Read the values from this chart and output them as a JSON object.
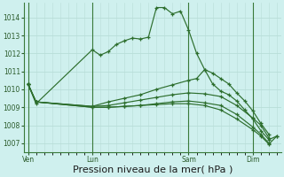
{
  "background_color": "#cff0ee",
  "grid_color": "#b8ddd8",
  "line_color": "#2d6e2d",
  "xlabel": "Pression niveau de la mer( hPa )",
  "xlabel_fontsize": 8,
  "ylim": [
    1006.5,
    1014.8
  ],
  "yticks": [
    1007,
    1008,
    1009,
    1010,
    1011,
    1012,
    1013,
    1014
  ],
  "xtick_labels": [
    "Ven",
    "Lun",
    "Sam",
    "Dim"
  ],
  "xtick_positions": [
    0,
    8,
    20,
    28
  ],
  "vlines_color": "#3a7a3a",
  "series": [
    {
      "x": [
        0,
        1,
        8,
        9,
        10,
        11,
        12,
        13,
        14,
        15,
        16,
        17,
        18,
        19,
        20,
        21,
        22,
        23,
        24,
        25,
        26,
        27,
        28,
        29,
        30,
        31
      ],
      "y": [
        1010.3,
        1009.2,
        1012.2,
        1011.9,
        1012.1,
        1012.5,
        1012.7,
        1012.85,
        1012.8,
        1012.9,
        1014.55,
        1014.55,
        1014.2,
        1014.35,
        1013.3,
        1012.0,
        1011.1,
        1010.3,
        1009.9,
        1009.7,
        1009.35,
        1008.85,
        1008.35,
        1007.7,
        1007.2,
        1007.4
      ]
    },
    {
      "x": [
        0,
        1,
        8,
        10,
        12,
        14,
        16,
        18,
        20,
        21,
        22,
        23,
        24,
        25,
        26,
        27,
        28,
        29,
        30
      ],
      "y": [
        1010.3,
        1009.3,
        1009.05,
        1009.3,
        1009.5,
        1009.7,
        1010.0,
        1010.25,
        1010.5,
        1010.6,
        1011.1,
        1010.9,
        1010.6,
        1010.3,
        1009.8,
        1009.35,
        1008.8,
        1008.1,
        1007.5
      ]
    },
    {
      "x": [
        0,
        1,
        8,
        10,
        12,
        14,
        16,
        18,
        20,
        22,
        24,
        26,
        28,
        29,
        30
      ],
      "y": [
        1010.3,
        1009.3,
        1009.05,
        1009.1,
        1009.25,
        1009.4,
        1009.55,
        1009.7,
        1009.8,
        1009.75,
        1009.6,
        1009.1,
        1008.4,
        1008.0,
        1007.3
      ]
    },
    {
      "x": [
        0,
        1,
        8,
        10,
        12,
        14,
        16,
        18,
        20,
        22,
        24,
        26,
        28,
        29,
        30
      ],
      "y": [
        1010.3,
        1009.3,
        1009.0,
        1009.0,
        1009.05,
        1009.1,
        1009.2,
        1009.3,
        1009.35,
        1009.25,
        1009.1,
        1008.6,
        1007.9,
        1007.5,
        1007.0
      ]
    },
    {
      "x": [
        0,
        1,
        8,
        10,
        12,
        14,
        16,
        18,
        20,
        22,
        24,
        26,
        28,
        29,
        30,
        31
      ],
      "y": [
        1010.3,
        1009.3,
        1009.0,
        1009.0,
        1009.05,
        1009.1,
        1009.15,
        1009.2,
        1009.2,
        1009.1,
        1008.85,
        1008.35,
        1007.75,
        1007.4,
        1006.95,
        1007.4
      ]
    }
  ]
}
